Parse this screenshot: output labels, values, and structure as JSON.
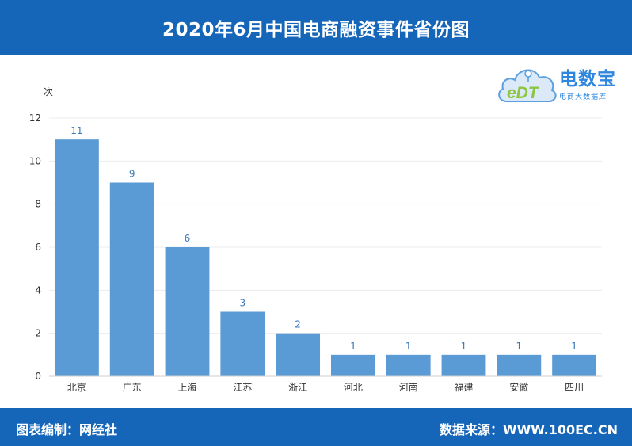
{
  "header": {
    "title": "2020年6月中国电商融资事件省份图"
  },
  "logo": {
    "name": "电数宝",
    "subtitle": "电商大数据库",
    "mark_text": "eDT"
  },
  "footer": {
    "left": "图表编制：网经社",
    "right": "数据来源：WWW.100EC.CN"
  },
  "colors": {
    "header": "#1565b8",
    "bar": "#5b9bd5",
    "label": "#3a78b8"
  },
  "chart_data": {
    "type": "bar",
    "ylabel": "次",
    "xlabel": "",
    "ylim": [
      0,
      12
    ],
    "yticks": [
      0,
      2,
      4,
      6,
      8,
      10,
      12
    ],
    "grid": true,
    "categories": [
      "北京",
      "广东",
      "上海",
      "江苏",
      "浙江",
      "河北",
      "河南",
      "福建",
      "安徽",
      "四川"
    ],
    "values": [
      11,
      9,
      6,
      3,
      2,
      1,
      1,
      1,
      1,
      1
    ]
  }
}
